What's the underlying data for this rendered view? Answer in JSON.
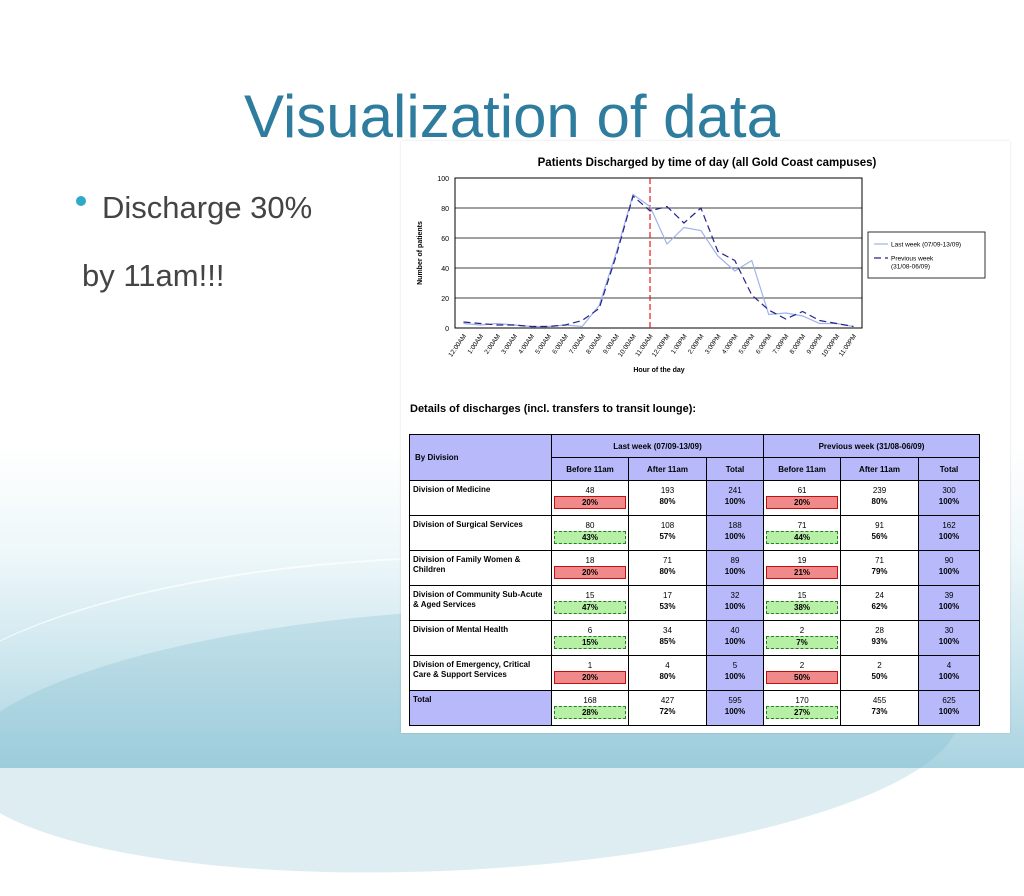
{
  "slide": {
    "title": "Visualization of data",
    "bullet": "Discharge 30%",
    "subline": "by 11am!!!"
  },
  "chart_data": {
    "type": "line",
    "title": "Patients Discharged by time of day (all Gold Coast campuses)",
    "xlabel": "Hour of the day",
    "ylabel": "Number of patients",
    "ylim": [
      0,
      100
    ],
    "yticks": [
      "0",
      "20",
      "40",
      "60",
      "80",
      "100"
    ],
    "categories": [
      "12:00AM",
      "1:00AM",
      "2:00AM",
      "3:00AM",
      "4:00AM",
      "5:00AM",
      "6:00AM",
      "7:00AM",
      "8:00AM",
      "9:00AM",
      "10:00AM",
      "11:00AM",
      "12:00PM",
      "1:00PM",
      "2:00PM",
      "3:00PM",
      "4:00PM",
      "5:00PM",
      "6:00PM",
      "7:00PM",
      "8:00PM",
      "9:00PM",
      "10:00PM",
      "11:00PM"
    ],
    "series": [
      {
        "name": "Last week (07/09-13/09)",
        "color": "#9fb2ec",
        "style": "solid",
        "values": [
          3,
          2,
          3,
          2,
          1,
          1,
          2,
          1,
          15,
          50,
          89,
          81,
          56,
          67,
          65,
          48,
          38,
          45,
          9,
          10,
          8,
          3,
          3,
          1
        ]
      },
      {
        "name": "Previous week (31/08-06/09)",
        "color": "#25238a",
        "style": "dashed",
        "values": [
          4,
          3,
          2,
          2,
          1,
          1,
          2,
          5,
          13,
          48,
          88,
          78,
          81,
          70,
          80,
          51,
          45,
          22,
          12,
          6,
          11,
          5,
          3,
          1
        ]
      }
    ],
    "marker": {
      "category": "11:00AM",
      "color": "#e8191a",
      "style": "dashed"
    },
    "legend_position": "right"
  },
  "details_title": "Details of discharges (incl. transfers to transit lounge):",
  "table": {
    "by_division": "By Division",
    "group_headers": [
      "Last week (07/09-13/09)",
      "Previous week (31/08-06/09)"
    ],
    "sub_headers": [
      "Before 11am",
      "After 11am",
      "Total",
      "Before 11am",
      "After 11am",
      "Total"
    ],
    "rows": [
      {
        "division": "Division of Medicine",
        "cells": [
          {
            "n": "48",
            "p": "20%",
            "flag": "red"
          },
          {
            "n": "193",
            "p": "80%"
          },
          {
            "n": "241",
            "p": "100%"
          },
          {
            "n": "61",
            "p": "20%",
            "flag": "red"
          },
          {
            "n": "239",
            "p": "80%"
          },
          {
            "n": "300",
            "p": "100%"
          }
        ]
      },
      {
        "division": "Division of Surgical Services",
        "cells": [
          {
            "n": "80",
            "p": "43%",
            "flag": "green"
          },
          {
            "n": "108",
            "p": "57%"
          },
          {
            "n": "188",
            "p": "100%"
          },
          {
            "n": "71",
            "p": "44%",
            "flag": "green"
          },
          {
            "n": "91",
            "p": "56%"
          },
          {
            "n": "162",
            "p": "100%"
          }
        ]
      },
      {
        "division": "Division of Family Women & Children",
        "cells": [
          {
            "n": "18",
            "p": "20%",
            "flag": "red"
          },
          {
            "n": "71",
            "p": "80%"
          },
          {
            "n": "89",
            "p": "100%"
          },
          {
            "n": "19",
            "p": "21%",
            "flag": "red"
          },
          {
            "n": "71",
            "p": "79%"
          },
          {
            "n": "90",
            "p": "100%"
          }
        ]
      },
      {
        "division": "Division of Community Sub-Acute & Aged Services",
        "cells": [
          {
            "n": "15",
            "p": "47%",
            "flag": "green"
          },
          {
            "n": "17",
            "p": "53%"
          },
          {
            "n": "32",
            "p": "100%"
          },
          {
            "n": "15",
            "p": "38%",
            "flag": "green"
          },
          {
            "n": "24",
            "p": "62%"
          },
          {
            "n": "39",
            "p": "100%"
          }
        ]
      },
      {
        "division": "Division of Mental Health",
        "cells": [
          {
            "n": "6",
            "p": "15%",
            "flag": "green"
          },
          {
            "n": "34",
            "p": "85%"
          },
          {
            "n": "40",
            "p": "100%"
          },
          {
            "n": "2",
            "p": "7%",
            "flag": "green"
          },
          {
            "n": "28",
            "p": "93%"
          },
          {
            "n": "30",
            "p": "100%"
          }
        ]
      },
      {
        "division": "Division of Emergency, Critical Care & Support Services",
        "cells": [
          {
            "n": "1",
            "p": "20%",
            "flag": "red"
          },
          {
            "n": "4",
            "p": "80%"
          },
          {
            "n": "5",
            "p": "100%"
          },
          {
            "n": "2",
            "p": "50%",
            "flag": "red"
          },
          {
            "n": "2",
            "p": "50%"
          },
          {
            "n": "4",
            "p": "100%"
          }
        ]
      },
      {
        "division": "Total",
        "total": true,
        "cells": [
          {
            "n": "168",
            "p": "28%",
            "flag": "green"
          },
          {
            "n": "427",
            "p": "72%"
          },
          {
            "n": "595",
            "p": "100%"
          },
          {
            "n": "170",
            "p": "27%",
            "flag": "green"
          },
          {
            "n": "455",
            "p": "73%"
          },
          {
            "n": "625",
            "p": "100%"
          }
        ]
      }
    ]
  }
}
